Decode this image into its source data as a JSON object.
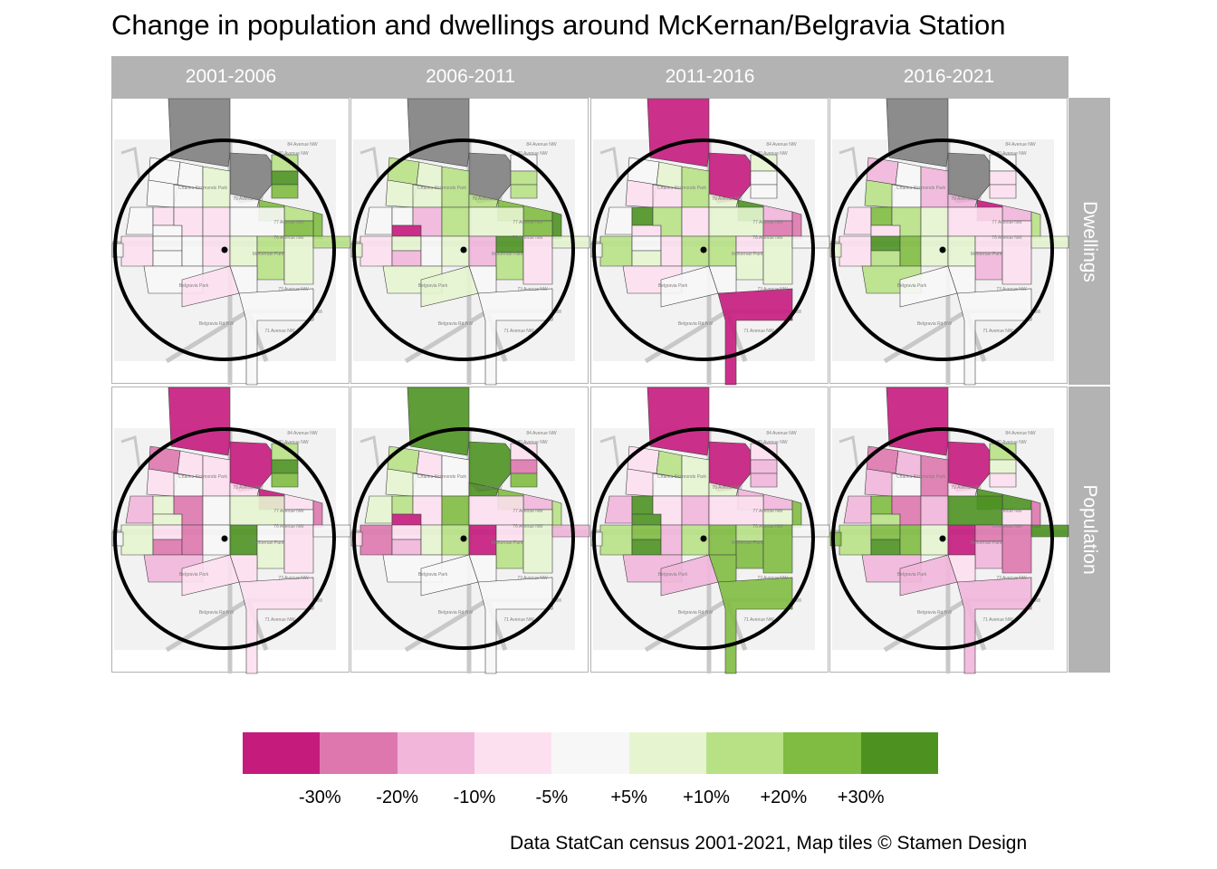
{
  "title": "Change in population and dwellings around McKernan/Belgravia Station",
  "columns": [
    "2001-2006",
    "2006-2011",
    "2011-2016",
    "2016-2021"
  ],
  "rows": [
    "Dwellings",
    "Population"
  ],
  "caption": "Data StatCan census 2001-2021, Map tiles © Stamen Design",
  "legend": {
    "colors": [
      "#c51b7d",
      "#de77ae",
      "#f1b6da",
      "#fde0ef",
      "#f7f7f7",
      "#e6f5d0",
      "#b8e186",
      "#7fbc41",
      "#4d9221"
    ],
    "labels": [
      "-30%",
      "-20%",
      "-10%",
      "-5%",
      "+5%",
      "+10%",
      "+20%",
      "+30%"
    ]
  },
  "na_color": "#7f7f7f",
  "station_marker": "station-point",
  "map_labels": [
    "84 Avenue NW",
    "80 Avenue NW",
    "Charles Simmonds Park",
    "79 Avenue NW",
    "77 Avenue NW",
    "76 Avenue NW",
    "McKernan Park",
    "Belgravia Park",
    "73 Avenue NW",
    "Belgravia Rd NW",
    "71 Avenue NW",
    "116 Street NW",
    "114 Street NW",
    "111 Street NW"
  ],
  "chart_data": {
    "type": "heatmap",
    "title": "Change in population and dwellings around McKernan/Belgravia Station",
    "facet_columns": [
      "2001-2006",
      "2006-2011",
      "2011-2016",
      "2016-2021"
    ],
    "facet_rows": [
      "Dwellings",
      "Population"
    ],
    "scale": "binned diverging (PiYG); class index 0=<-30% ... 4=-5%..+5% ... 8=>+30%; -1=NA",
    "break_labels": [
      "-30%",
      "-20%",
      "-10%",
      "-5%",
      "+5%",
      "+10%",
      "+20%",
      "+30%"
    ],
    "region_names": [
      "north-tall",
      "north-east-big",
      "ne-strip-1",
      "ne-strip-2",
      "ne-strip-3",
      "nw-1",
      "nw-2",
      "nw-3",
      "charles-park",
      "n-center",
      "center-n",
      "e-1",
      "e-2",
      "e-3",
      "w-1",
      "w-2",
      "w-3",
      "w-4",
      "center",
      "east-center",
      "far-east",
      "sw-1",
      "sw-2",
      "sw-3",
      "s-center-w",
      "s-center",
      "s-center-e",
      "se-1",
      "se-2",
      "se-3",
      "s-1",
      "s-2",
      "s-3",
      "south-tail",
      "east-strip",
      "west-strip"
    ],
    "panels": [
      {
        "row": "Dwellings",
        "column": "2001-2006",
        "classes": [
          -1,
          -1,
          6,
          8,
          7,
          4,
          4,
          4,
          4,
          5,
          4,
          7,
          6,
          7,
          4,
          3,
          4,
          3,
          3,
          4,
          7,
          3,
          4,
          4,
          4,
          3,
          5,
          6,
          6,
          5,
          4,
          3,
          4,
          4,
          6,
          4
        ]
      },
      {
        "row": "Dwellings",
        "column": "2006-2011",
        "classes": [
          -1,
          -1,
          4,
          6,
          6,
          6,
          5,
          5,
          5,
          6,
          6,
          7,
          7,
          8,
          4,
          4,
          0,
          2,
          6,
          5,
          7,
          3,
          5,
          2,
          4,
          5,
          2,
          8,
          6,
          3,
          5,
          5,
          4,
          4,
          5,
          5
        ]
      },
      {
        "row": "Dwellings",
        "column": "2011-2016",
        "classes": [
          0,
          0,
          5,
          4,
          4,
          4,
          5,
          3,
          3,
          6,
          5,
          8,
          2,
          1,
          4,
          8,
          3,
          6,
          3,
          5,
          1,
          6,
          4,
          5,
          3,
          6,
          6,
          3,
          5,
          5,
          3,
          4,
          4,
          0,
          4,
          4
        ]
      },
      {
        "row": "Dwellings",
        "column": "2016-2021",
        "classes": [
          -1,
          -1,
          4,
          3,
          3,
          2,
          4,
          6,
          4,
          2,
          2,
          0,
          2,
          6,
          3,
          7,
          3,
          6,
          5,
          3,
          3,
          3,
          8,
          6,
          7,
          5,
          5,
          3,
          2,
          3,
          6,
          4,
          4,
          4,
          5,
          5
        ]
      },
      {
        "row": "Population",
        "column": "2001-2006",
        "classes": [
          0,
          0,
          6,
          8,
          7,
          1,
          3,
          3,
          4,
          3,
          3,
          0,
          3,
          1,
          2,
          5,
          5,
          1,
          4,
          5,
          4,
          5,
          3,
          1,
          1,
          4,
          8,
          4,
          5,
          3,
          2,
          3,
          3,
          3,
          4,
          4
        ]
      },
      {
        "row": "Population",
        "column": "2006-2011",
        "classes": [
          8,
          8,
          3,
          1,
          7,
          6,
          3,
          5,
          4,
          4,
          8,
          7,
          2,
          6,
          5,
          6,
          0,
          3,
          7,
          3,
          5,
          1,
          3,
          2,
          5,
          6,
          0,
          3,
          6,
          5,
          4,
          4,
          4,
          4,
          2,
          3
        ]
      },
      {
        "row": "Population",
        "column": "2011-2016",
        "classes": [
          0,
          0,
          3,
          2,
          2,
          3,
          6,
          3,
          4,
          5,
          5,
          2,
          2,
          7,
          2,
          8,
          8,
          3,
          2,
          3,
          5,
          6,
          7,
          8,
          2,
          6,
          7,
          6,
          7,
          7,
          2,
          2,
          7,
          7,
          4,
          4
        ]
      },
      {
        "row": "Population",
        "column": "2016-2021",
        "classes": [
          0,
          0,
          6,
          5,
          3,
          1,
          2,
          2,
          4,
          1,
          3,
          8,
          8,
          1,
          2,
          7,
          6,
          1,
          2,
          8,
          3,
          6,
          7,
          8,
          7,
          5,
          0,
          1,
          2,
          1,
          2,
          2,
          3,
          2,
          8,
          7
        ]
      }
    ]
  }
}
